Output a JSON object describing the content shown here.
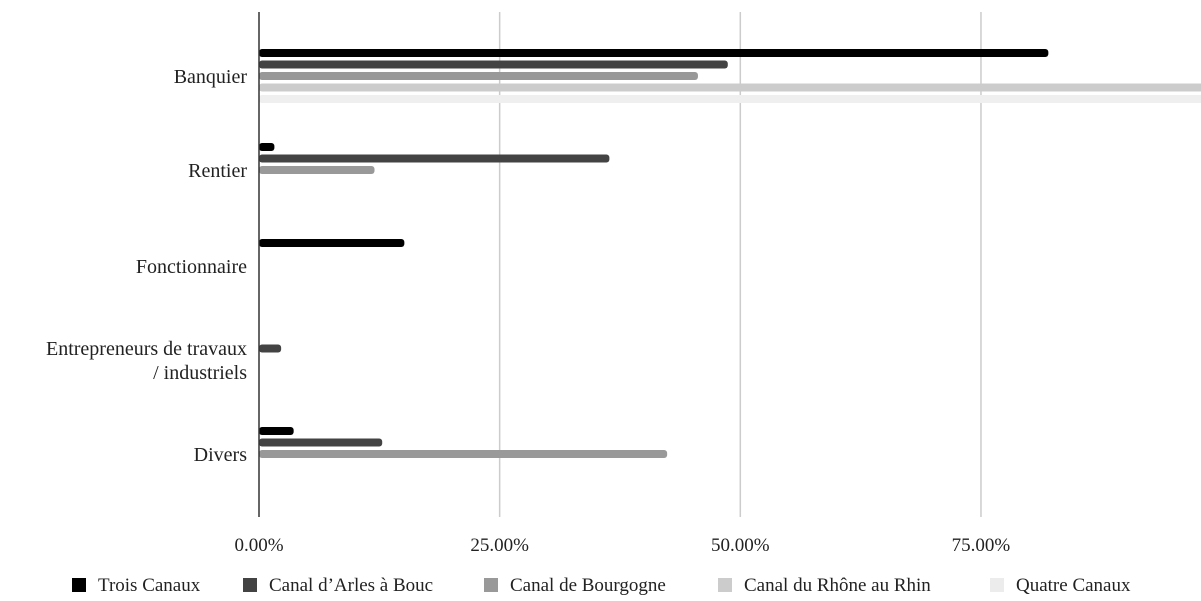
{
  "chart_data": {
    "type": "bar",
    "orientation": "horizontal",
    "categories": [
      [
        "Banquier"
      ],
      [
        "Rentier"
      ],
      [
        "Fonctionnaire"
      ],
      [
        "Entrepreneurs de travaux",
        "/ industriels"
      ],
      [
        "Divers"
      ]
    ],
    "series": [
      {
        "name": "Trois Canaux",
        "color": "#000000",
        "values": [
          82.0,
          1.6,
          15.1,
          0.0,
          3.6
        ]
      },
      {
        "name": "Canal d’Arles à Bouc",
        "color": "#434343",
        "values": [
          48.7,
          36.4,
          0.0,
          2.3,
          12.8
        ]
      },
      {
        "name": "Canal de Bourgogne",
        "color": "#999999",
        "values": [
          45.6,
          12.0,
          0.0,
          0.0,
          42.4
        ]
      },
      {
        "name": "Canal du Rhône au Rhin",
        "color": "#cccccc",
        "values": [
          100.0,
          0.0,
          0.0,
          0.0,
          0.0
        ]
      },
      {
        "name": "Quatre Canaux",
        "color": "#efefef",
        "values": [
          100.0,
          0.0,
          0.0,
          0.0,
          0.0
        ]
      }
    ],
    "xticks": [
      "0.00%",
      "25.00%",
      "50.00%",
      "75.00%"
    ],
    "xtick_values": [
      0,
      25,
      50,
      75
    ],
    "xlim": [
      0,
      99
    ],
    "grid": true,
    "legend_position": "bottom"
  }
}
